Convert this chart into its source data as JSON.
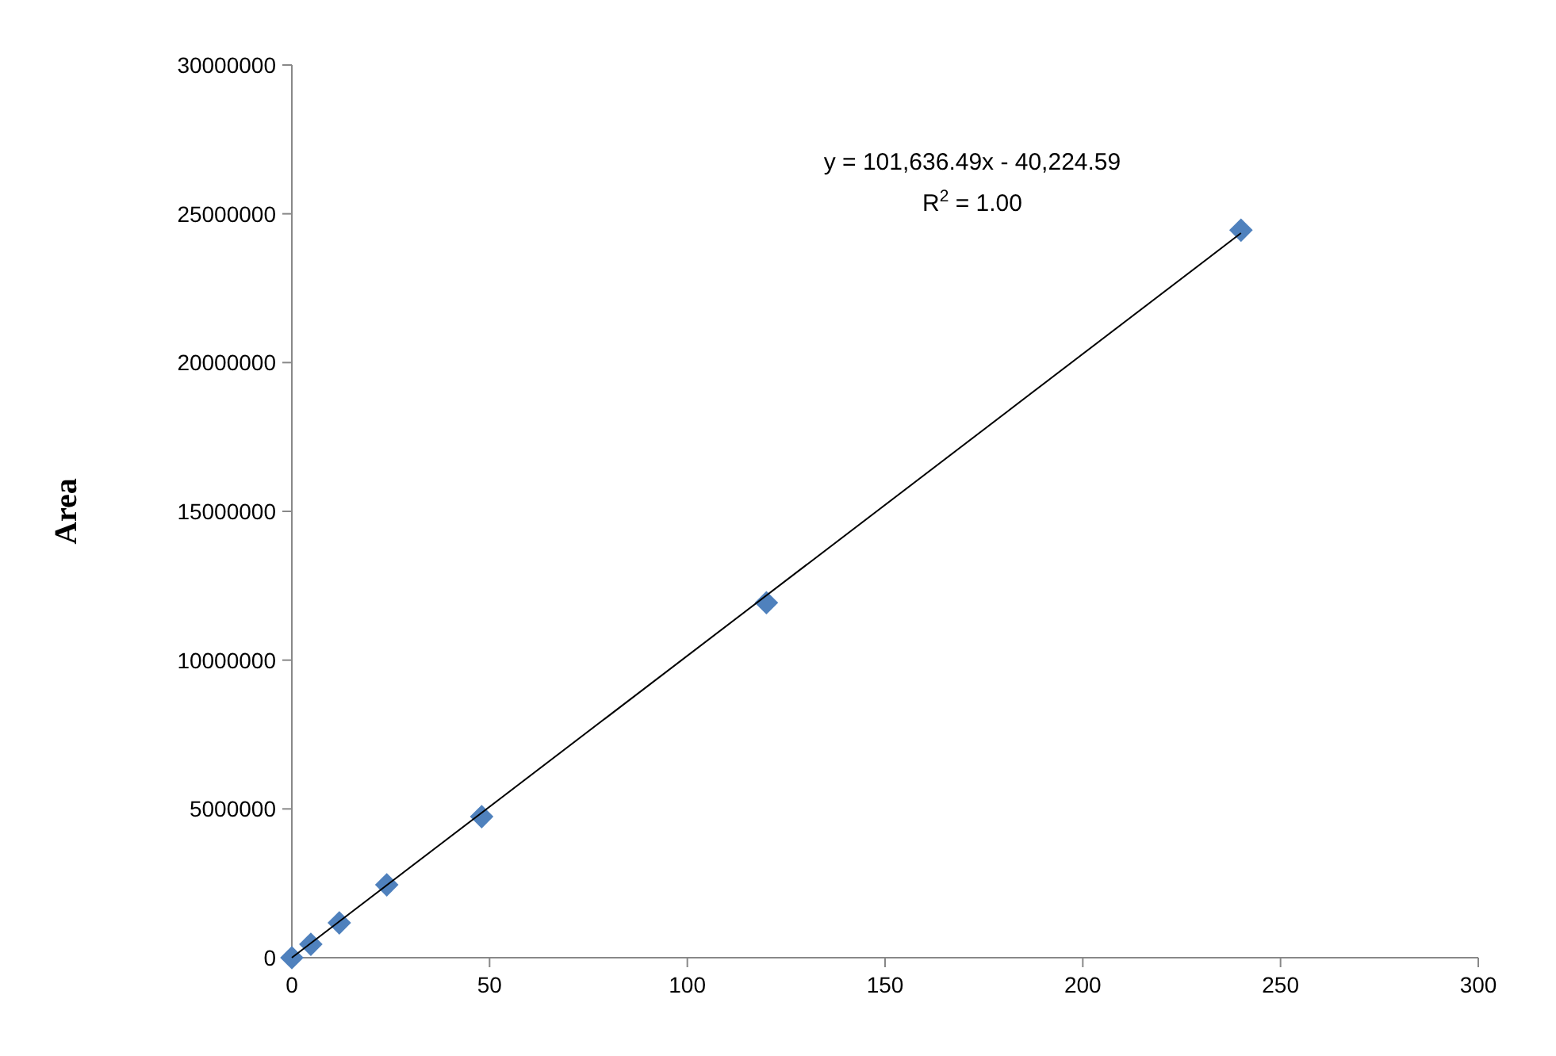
{
  "chart_data": {
    "type": "scatter",
    "ylabel": "Area",
    "xlim": [
      0,
      300
    ],
    "xticks": [
      0,
      50,
      100,
      150,
      200,
      250,
      300
    ],
    "ylim": [
      0,
      30000000
    ],
    "yticks": [
      0,
      5000000,
      10000000,
      15000000,
      20000000,
      25000000,
      30000000
    ],
    "grid": false,
    "series": [
      {
        "marker": "diamond",
        "color": "#4f81bd",
        "x": [
          0,
          4.8,
          12,
          24,
          48,
          120,
          240
        ],
        "values": [
          0,
          450000,
          1170000,
          2450000,
          4740000,
          11930000,
          24450000
        ]
      },
      {
        "type": "line",
        "color": "#000000",
        "line_style": "solid",
        "x": [
          0,
          240
        ],
        "values": [
          0,
          24350000
        ]
      }
    ],
    "annotations": [
      "y = 101,636.49x - 40,224.59",
      "R$^{2}$ = 1.00"
    ]
  }
}
